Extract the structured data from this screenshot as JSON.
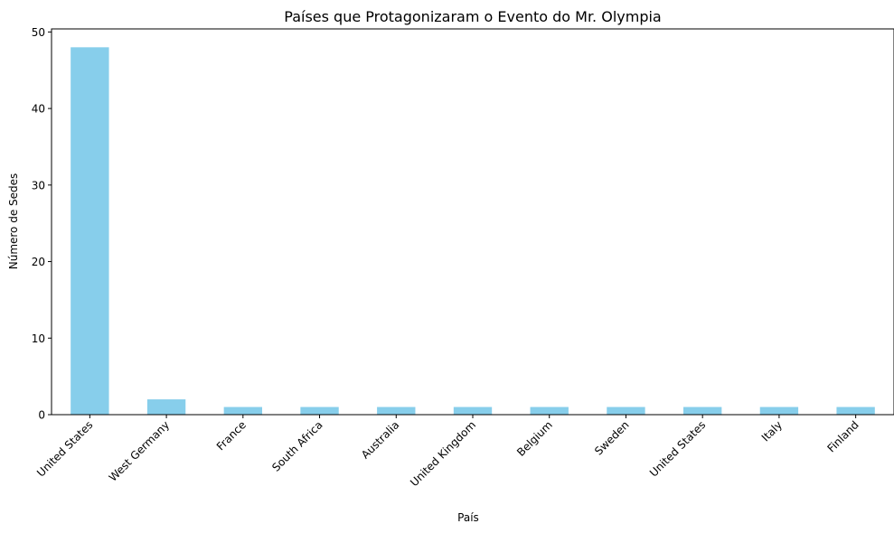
{
  "chart_data": {
    "type": "bar",
    "title": "Países que Protagonizaram o Evento do Mr. Olympia",
    "xlabel": "País",
    "ylabel": "Número de Sedes",
    "categories": [
      "United States",
      "West Germany",
      "France",
      "South Africa",
      "Australia",
      "United Kingdom",
      "Belgium",
      "Sweden",
      "United States",
      "Italy",
      "Finland"
    ],
    "values": [
      48,
      2,
      1,
      1,
      1,
      1,
      1,
      1,
      1,
      1,
      1
    ],
    "ylim": [
      0,
      50.4
    ],
    "yticks": [
      0,
      10,
      20,
      30,
      40,
      50
    ],
    "grid": false,
    "legend": "none",
    "bar_color": "#87CEEB"
  }
}
